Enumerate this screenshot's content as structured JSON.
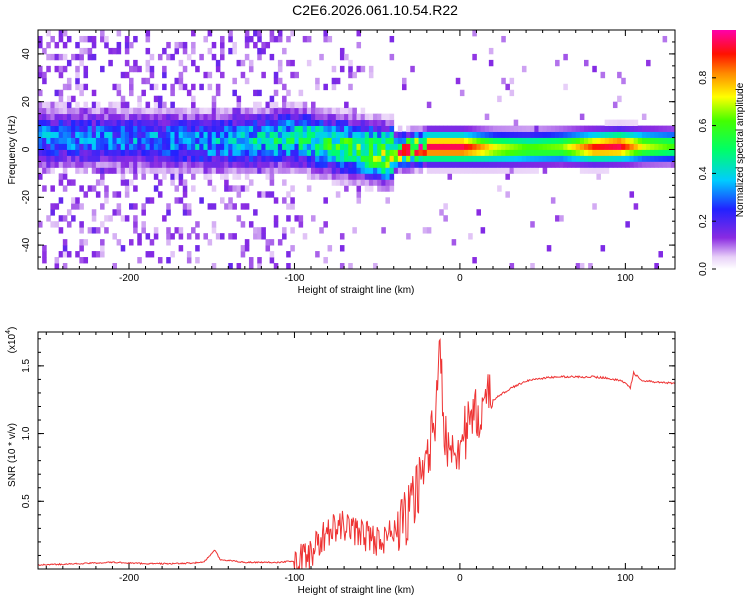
{
  "title": "C2E6.2026.061.10.54.R22",
  "chart_data": [
    {
      "type": "heatmap",
      "xlabel": "Height of straight line (km)",
      "ylabel": "Frequency (Hz)",
      "xlim": [
        -255,
        130
      ],
      "ylim": [
        -50,
        50
      ],
      "xticks": [
        -200,
        -100,
        0,
        100
      ],
      "xtick_labels": [
        "-200",
        "-100",
        "0",
        "100"
      ],
      "yticks": [
        -40,
        -20,
        0,
        20,
        40
      ],
      "ytick_labels": [
        "-40",
        "-20",
        "0",
        "20",
        "40"
      ],
      "colorbar": {
        "label": "Normalized spectral amplitude",
        "range": [
          0.0,
          1.0
        ],
        "ticks": [
          0.0,
          0.2,
          0.4,
          0.6,
          0.8
        ],
        "tick_labels": [
          "0.0",
          "0.2",
          "0.4",
          "0.6",
          "0.8"
        ]
      },
      "ridge": {
        "x": [
          -255,
          -200,
          -150,
          -120,
          -100,
          -80,
          -60,
          -45,
          -40,
          -30,
          -20,
          -10,
          0,
          20,
          40,
          60,
          80,
          95,
          110,
          130
        ],
        "center_hz": [
          5,
          4,
          3,
          4,
          5,
          2,
          0,
          -2,
          -1,
          0,
          1,
          1,
          1,
          0.5,
          0.5,
          1,
          1,
          1.5,
          1.5,
          1.5
        ],
        "peak_amplitude": [
          0.35,
          0.35,
          0.38,
          0.45,
          0.5,
          0.55,
          0.62,
          0.72,
          0.8,
          0.9,
          0.95,
          0.95,
          0.95,
          0.72,
          0.62,
          0.65,
          0.9,
          0.95,
          0.7,
          0.6
        ]
      }
    },
    {
      "type": "line",
      "xlabel": "Height of straight line (km)",
      "ylabel": "SNR (10 * v/v)",
      "y_multiplier": "(x10",
      "y_multiplier_exp": "4",
      "y_multiplier_close": ")",
      "xlim": [
        -255,
        130
      ],
      "ylim": [
        0,
        1.75
      ],
      "xticks": [
        -200,
        -100,
        0,
        100
      ],
      "xtick_labels": [
        "-200",
        "-100",
        "0",
        "100"
      ],
      "yticks": [
        0.5,
        1.0,
        1.5
      ],
      "ytick_labels": [
        "0.5",
        "1.0",
        "1.5"
      ],
      "series": [
        {
          "name": "SNR",
          "color": "#ee3333",
          "x": [
            -255,
            -230,
            -210,
            -190,
            -170,
            -155,
            -148,
            -145,
            -130,
            -110,
            -100,
            -95,
            -90,
            -85,
            -80,
            -75,
            -70,
            -65,
            -60,
            -55,
            -50,
            -45,
            -40,
            -35,
            -30,
            -28,
            -25,
            -22,
            -20,
            -18,
            -15,
            -13,
            -12,
            -10,
            -8,
            -5,
            0,
            5,
            10,
            15,
            20,
            30,
            40,
            50,
            60,
            70,
            80,
            90,
            100,
            103,
            105,
            110,
            120,
            130
          ],
          "y": [
            0.03,
            0.04,
            0.05,
            0.04,
            0.04,
            0.05,
            0.14,
            0.07,
            0.05,
            0.05,
            0.06,
            0.1,
            0.14,
            0.2,
            0.3,
            0.3,
            0.33,
            0.3,
            0.28,
            0.25,
            0.22,
            0.24,
            0.28,
            0.35,
            0.45,
            0.55,
            0.65,
            0.75,
            0.85,
            0.95,
            1.15,
            1.35,
            1.72,
            1.1,
            1.0,
            0.95,
            0.95,
            1.05,
            1.15,
            1.25,
            1.25,
            1.33,
            1.39,
            1.41,
            1.42,
            1.42,
            1.42,
            1.41,
            1.38,
            1.34,
            1.45,
            1.39,
            1.38,
            1.37
          ]
        }
      ]
    }
  ]
}
